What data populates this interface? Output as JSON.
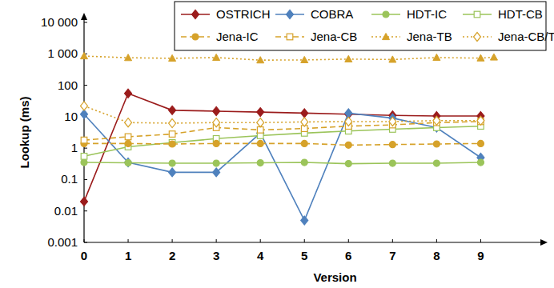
{
  "chart_data": {
    "type": "line",
    "x_label": "Version",
    "y_label": "Lookup (ms)",
    "x": [
      0,
      1,
      2,
      3,
      4,
      5,
      6,
      7,
      8,
      9
    ],
    "xlim": [
      0,
      10.3
    ],
    "xticks": [
      0,
      1,
      2,
      3,
      4,
      5,
      6,
      7,
      8,
      9
    ],
    "ylim": [
      0.001,
      10000
    ],
    "yticks": [
      0.001,
      0.01,
      0.1,
      1,
      10,
      100,
      {
        "value": 1000,
        "label": "1 000"
      },
      {
        "value": 10000,
        "label": "10 000"
      }
    ],
    "log": "y",
    "grid": false,
    "legend": "top",
    "series": [
      {
        "name": "OSTRICH",
        "color": "#9b1c1c",
        "marker": "diamond",
        "line_style": "solid",
        "values": [
          0.02,
          55,
          16,
          15,
          14,
          13,
          12,
          11,
          10.5,
          10.5
        ]
      },
      {
        "name": "COBRA",
        "color": "#4f81bd",
        "marker": "diamond",
        "line_style": "solid",
        "values": [
          12,
          0.35,
          0.17,
          0.17,
          3,
          0.005,
          13,
          9,
          4.5,
          0.5
        ]
      },
      {
        "name": "HDT-IC",
        "color": "#9bc45a",
        "marker": "circle",
        "line_style": "solid",
        "values": [
          0.35,
          0.34,
          0.33,
          0.33,
          0.34,
          0.35,
          0.32,
          0.33,
          0.33,
          0.35
        ]
      },
      {
        "name": "HDT-CB",
        "color": "#9bc45a",
        "marker": "square-open",
        "line_style": "solid",
        "values": [
          0.55,
          1.1,
          1.5,
          2,
          2.5,
          3,
          3.5,
          4,
          4.5,
          5
        ]
      },
      {
        "name": "Jena-IC",
        "color": "#d6a22a",
        "marker": "circle",
        "line_style": "dashed",
        "values": [
          1.4,
          1.4,
          1.35,
          1.4,
          1.4,
          1.4,
          1.25,
          1.3,
          1.35,
          1.4
        ]
      },
      {
        "name": "Jena-CB",
        "color": "#d6a22a",
        "marker": "square-open",
        "line_style": "dashed",
        "values": [
          1.8,
          2.3,
          2.8,
          4.5,
          3.8,
          4.2,
          5,
          5.5,
          6.5,
          7
        ]
      },
      {
        "name": "Jena-TB",
        "color": "#d6a22a",
        "marker": "triangle",
        "line_style": "dotted",
        "x": [
          0,
          1,
          2,
          3,
          4,
          5,
          6,
          7,
          8,
          9,
          9.3
        ],
        "values": [
          850,
          750,
          720,
          760,
          630,
          640,
          680,
          660,
          760,
          730,
          780
        ]
      },
      {
        "name": "Jena-CB/TB",
        "color": "#d6a22a",
        "marker": "diamond-open",
        "line_style": "dotted",
        "values": [
          22,
          6.5,
          6.2,
          6.5,
          6.5,
          6.8,
          7,
          7,
          7.5,
          7.5
        ]
      }
    ]
  }
}
